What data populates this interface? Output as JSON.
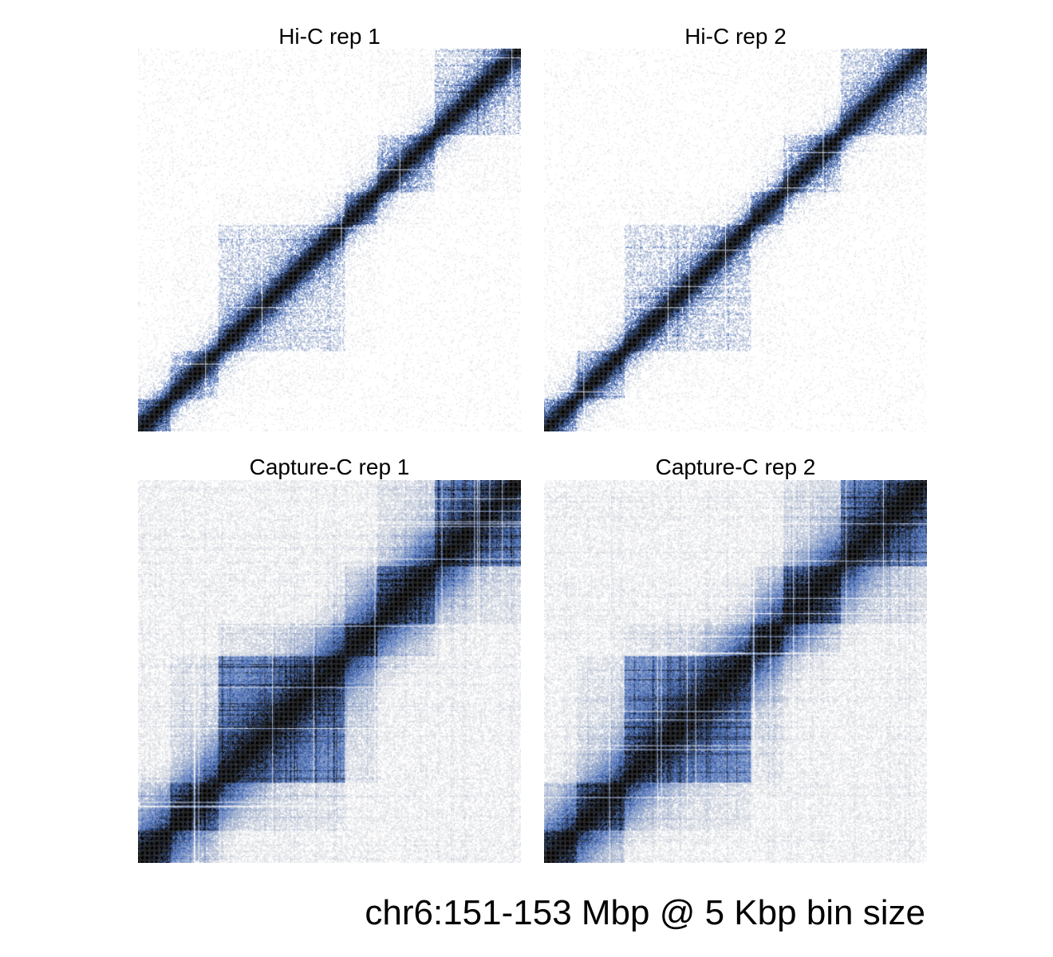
{
  "figure": {
    "caption": "chr6:151-153 Mbp @ 5 Kbp bin size"
  },
  "colors": {
    "background": "#ffffff",
    "low": "#c8c8c8",
    "mid": "#3a64b8",
    "high": "#000000"
  },
  "chart_data": [
    {
      "type": "heatmap",
      "title": "Hi-C rep 1",
      "region": "chr6:151-153 Mbp",
      "bin_size": "5 Kbp",
      "matrix_bins": 400,
      "symmetric": true,
      "diagonal": "bottom-left to top-right",
      "domains_mbp": [
        [
          151.0,
          151.17
        ],
        [
          151.17,
          151.42
        ],
        [
          151.42,
          152.08
        ],
        [
          152.08,
          152.25
        ],
        [
          152.25,
          152.55
        ],
        [
          152.55,
          153.0
        ]
      ],
      "signal_density": "sparse"
    },
    {
      "type": "heatmap",
      "title": "Hi-C rep 2",
      "region": "chr6:151-153 Mbp",
      "bin_size": "5 Kbp",
      "matrix_bins": 400,
      "symmetric": true,
      "diagonal": "bottom-left to top-right",
      "domains_mbp": [
        [
          151.0,
          151.17
        ],
        [
          151.17,
          151.42
        ],
        [
          151.42,
          152.08
        ],
        [
          152.08,
          152.25
        ],
        [
          152.25,
          152.55
        ],
        [
          152.55,
          153.0
        ]
      ],
      "signal_density": "sparse"
    },
    {
      "type": "heatmap",
      "title": "Capture-C rep 1",
      "region": "chr6:151-153 Mbp",
      "bin_size": "5 Kbp",
      "matrix_bins": 400,
      "symmetric": true,
      "diagonal": "bottom-left to top-right",
      "domains_mbp": [
        [
          151.0,
          151.17
        ],
        [
          151.17,
          151.42
        ],
        [
          151.42,
          152.08
        ],
        [
          152.08,
          152.25
        ],
        [
          152.25,
          152.55
        ],
        [
          152.55,
          153.0
        ]
      ],
      "signal_density": "dense"
    },
    {
      "type": "heatmap",
      "title": "Capture-C rep 2",
      "region": "chr6:151-153 Mbp",
      "bin_size": "5 Kbp",
      "matrix_bins": 400,
      "symmetric": true,
      "diagonal": "bottom-left to top-right",
      "domains_mbp": [
        [
          151.0,
          151.17
        ],
        [
          151.17,
          151.42
        ],
        [
          151.42,
          152.08
        ],
        [
          152.08,
          152.25
        ],
        [
          152.25,
          152.55
        ],
        [
          152.55,
          153.0
        ]
      ],
      "signal_density": "dense"
    }
  ]
}
